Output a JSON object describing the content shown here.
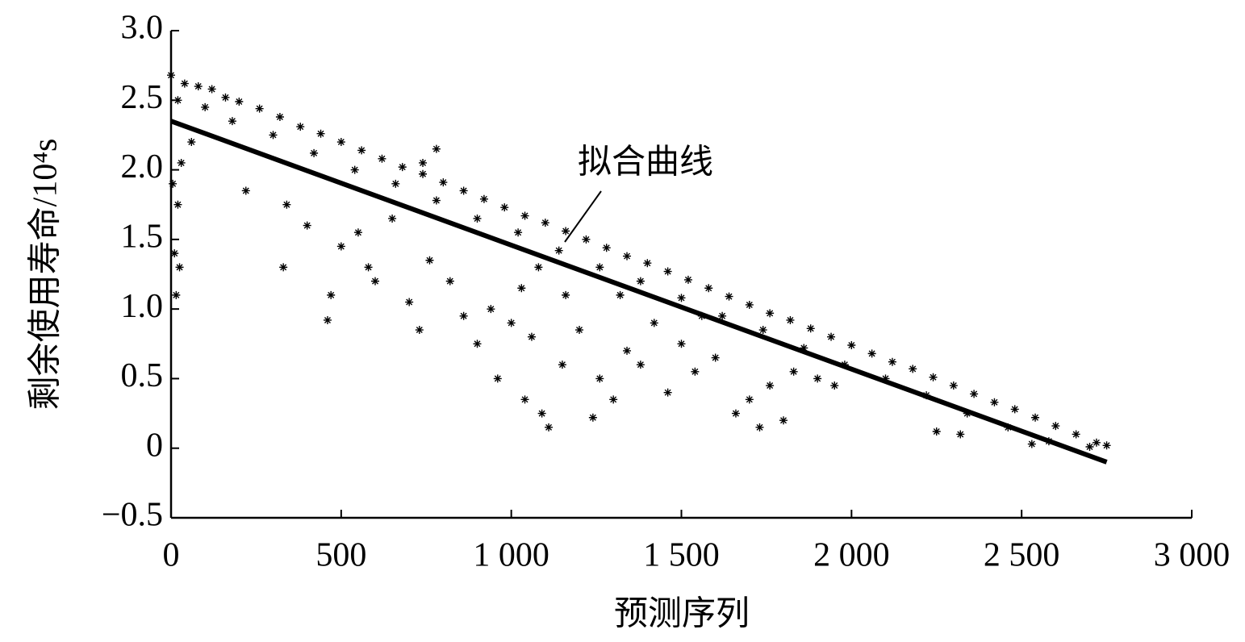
{
  "chart_data": {
    "type": "scatter",
    "y_label": "剩余使用寿命/10⁴s",
    "x_label": "预测序列",
    "annotation": "拟合曲线",
    "xlim": [
      0,
      3000
    ],
    "xticks": [
      0,
      500,
      {
        "value": 1000,
        "label": "1 000"
      },
      {
        "value": 1500,
        "label": "1 500"
      },
      {
        "value": 2000,
        "label": "2 000"
      },
      {
        "value": 2500,
        "label": "2 500"
      },
      {
        "value": 3000,
        "label": "3 000"
      }
    ],
    "ylim": [
      -0.5,
      3.0
    ],
    "yticks": [
      {
        "value": -0.5,
        "label": "−0.5"
      },
      0,
      0.5,
      {
        "value": 1.0,
        "label": "1.0"
      },
      1.5,
      {
        "value": 2.0,
        "label": "2.0"
      },
      2.5,
      {
        "value": 3.0,
        "label": "3.0"
      }
    ],
    "series": [
      {
        "type": "scatter",
        "color": "#000000",
        "x": [
          0,
          40,
          80,
          120,
          160,
          200,
          260,
          320,
          380,
          440,
          500,
          560,
          620,
          680,
          740,
          800,
          860,
          920,
          980,
          1040,
          1100,
          1160,
          1220,
          1280,
          1340,
          1400,
          1460,
          1520,
          1580,
          1640,
          1700,
          1760,
          1820,
          1880,
          1940,
          2000,
          2060,
          2120,
          2180,
          2240,
          2300,
          2360,
          2420,
          2480,
          2540,
          2600,
          2660,
          2720,
          2750,
          20,
          100,
          180,
          300,
          420,
          540,
          660,
          780,
          900,
          1020,
          1140,
          1260,
          1380,
          1500,
          1620,
          1740,
          1860,
          1980,
          2100,
          2220,
          2340,
          2460,
          2580,
          2700,
          10,
          15,
          20,
          25,
          30,
          5,
          60,
          220,
          330,
          340,
          400,
          460,
          470,
          500,
          550,
          580,
          600,
          650,
          700,
          730,
          760,
          820,
          860,
          900,
          940,
          960,
          1000,
          1030,
          1040,
          1060,
          1090,
          1110,
          1150,
          1200,
          1240,
          1260,
          1300,
          1340,
          1380,
          1420,
          1460,
          1500,
          1540,
          1600,
          1660,
          1700,
          1730,
          1760,
          1800,
          1830,
          1900,
          1950,
          2250,
          2320,
          2530,
          1160,
          1080,
          1320,
          1560,
          780,
          740
        ],
        "values": [
          2.68,
          2.62,
          2.6,
          2.58,
          2.52,
          2.49,
          2.44,
          2.38,
          2.31,
          2.26,
          2.2,
          2.14,
          2.08,
          2.02,
          1.97,
          1.91,
          1.85,
          1.79,
          1.73,
          1.67,
          1.62,
          1.56,
          1.5,
          1.44,
          1.38,
          1.33,
          1.27,
          1.21,
          1.15,
          1.09,
          1.03,
          0.97,
          0.92,
          0.86,
          0.8,
          0.74,
          0.68,
          0.62,
          0.57,
          0.51,
          0.45,
          0.39,
          0.33,
          0.28,
          0.22,
          0.16,
          0.1,
          0.04,
          0.02,
          2.5,
          2.45,
          2.35,
          2.25,
          2.12,
          2.0,
          1.9,
          1.78,
          1.65,
          1.55,
          1.42,
          1.3,
          1.2,
          1.08,
          0.95,
          0.85,
          0.72,
          0.6,
          0.5,
          0.38,
          0.25,
          0.15,
          0.05,
          0.01,
          1.4,
          1.1,
          1.75,
          1.3,
          2.05,
          1.9,
          2.2,
          1.85,
          1.3,
          1.75,
          1.6,
          0.92,
          1.1,
          1.45,
          1.55,
          1.3,
          1.2,
          1.65,
          1.05,
          0.85,
          1.35,
          1.2,
          0.95,
          0.75,
          1.0,
          0.5,
          0.9,
          1.15,
          0.35,
          0.8,
          0.25,
          0.15,
          0.6,
          0.85,
          0.22,
          0.5,
          0.35,
          0.7,
          0.6,
          0.9,
          0.4,
          0.75,
          0.55,
          0.65,
          0.25,
          0.35,
          0.15,
          0.45,
          0.2,
          0.55,
          0.5,
          0.45,
          0.12,
          0.1,
          0.03,
          1.1,
          1.3,
          1.1,
          0.95,
          2.15,
          2.05
        ]
      },
      {
        "type": "line",
        "color": "#000000",
        "x": [
          0,
          2750
        ],
        "values": [
          2.35,
          -0.1
        ]
      }
    ]
  }
}
